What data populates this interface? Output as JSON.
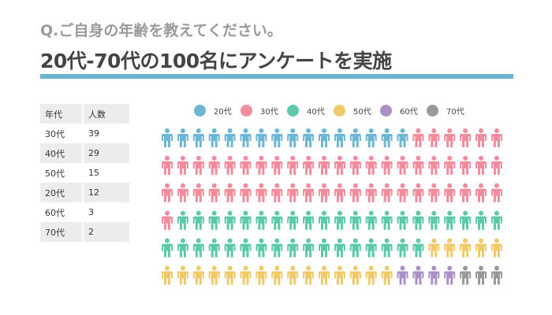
{
  "question": "Q.ご自身の年齢を教えてください。",
  "title": "20代-70代の100名にアンケートを実施",
  "accent_color": "#6ab6d2",
  "chart_data": [
    {
      "type": "table",
      "columns": [
        "年代",
        "人数"
      ],
      "rows": [
        [
          "30代",
          "39"
        ],
        [
          "40代",
          "29"
        ],
        [
          "50代",
          "15"
        ],
        [
          "20代",
          "12"
        ],
        [
          "60代",
          "3"
        ],
        [
          "70代",
          "2"
        ]
      ]
    },
    {
      "type": "pictogram",
      "icon": "person-icon",
      "legend_placement": "top",
      "grid": {
        "rows": 6,
        "columns": 22
      },
      "series": [
        {
          "name": "20代",
          "color": "#6cb8d4",
          "icons": 16
        },
        {
          "name": "30代",
          "color": "#f28b9c",
          "icons": 51
        },
        {
          "name": "40代",
          "color": "#5cc9a9",
          "icons": 38
        },
        {
          "name": "50代",
          "color": "#f0ca68",
          "icons": 20
        },
        {
          "name": "60代",
          "color": "#ab90c6",
          "icons": 4
        },
        {
          "name": "70代",
          "color": "#999999",
          "icons": 3
        }
      ]
    }
  ]
}
